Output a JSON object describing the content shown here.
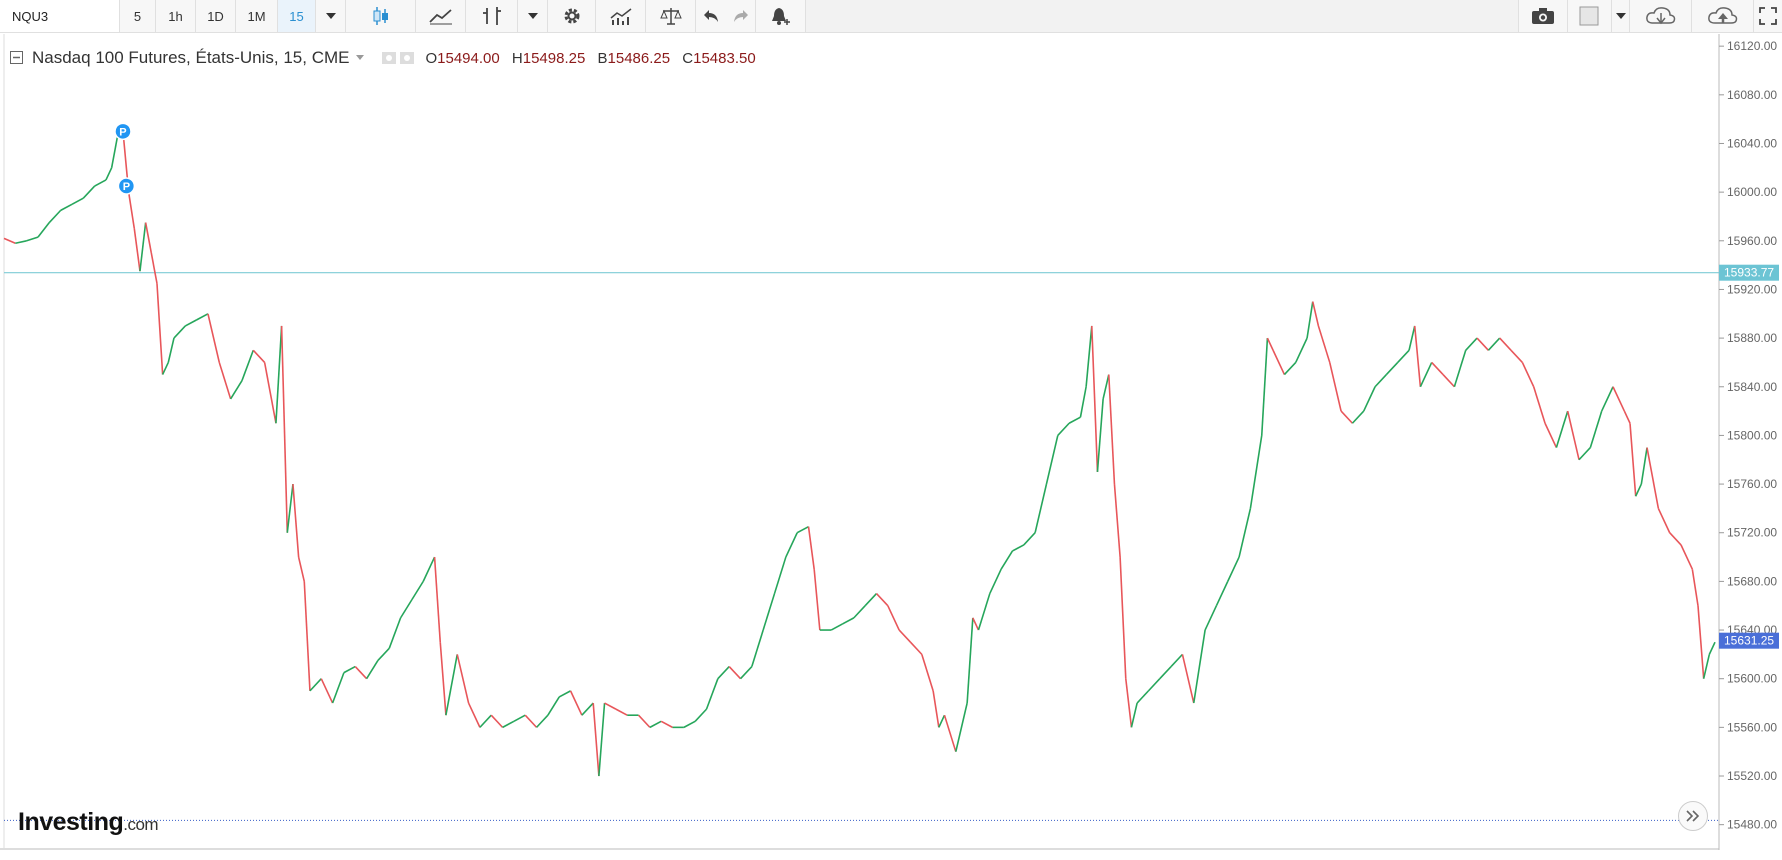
{
  "toolbar": {
    "symbol": "NQU3",
    "intervals": [
      "5",
      "1h",
      "1D",
      "1M",
      "15"
    ],
    "active_interval": "15"
  },
  "legend": {
    "title": "Nasdaq 100 Futures, États-Unis, 15, CME",
    "open_label": "O",
    "open": "15494.00",
    "high_label": "H",
    "high": "15498.25",
    "low_label": "B",
    "low": "15486.25",
    "close_label": "C",
    "close": "15483.50"
  },
  "logo": {
    "main": "Investing",
    "suffix": ".com"
  },
  "colors": {
    "up": "#26a65b",
    "down": "#e8565a",
    "hline": "#7ecbd6",
    "price_tag": "#4a6fd8",
    "level_tag": "#6cc4d4",
    "dotted_line": "#3a5fc8",
    "marker": "#2196f3"
  },
  "chart_data": {
    "type": "line",
    "title": "Nasdaq 100 Futures, États-Unis, 15, CME",
    "interval": "15",
    "ylim": [
      15460,
      16130
    ],
    "y_ticks": [
      "16120.00",
      "16080.00",
      "16040.00",
      "16000.00",
      "15960.00",
      "15920.00",
      "15880.00",
      "15840.00",
      "15800.00",
      "15760.00",
      "15720.00",
      "15680.00",
      "15640.00",
      "15600.00",
      "15560.00",
      "15520.00",
      "15480.00"
    ],
    "series": [
      {
        "x": [
          0,
          10,
          20,
          30,
          40,
          50,
          60,
          70,
          80,
          90,
          95,
          100,
          105,
          110,
          115,
          120,
          125,
          130,
          135,
          140,
          145,
          150,
          160,
          170,
          180,
          190,
          200,
          210,
          220,
          230,
          240,
          245,
          250,
          255,
          260,
          265,
          270,
          280,
          290,
          300,
          310,
          320,
          330,
          340,
          350,
          360,
          370,
          380,
          385,
          390,
          400,
          410,
          420,
          430,
          440,
          450,
          460,
          470,
          480,
          490,
          500,
          510,
          520,
          525,
          530,
          540,
          550,
          560,
          570,
          580,
          590,
          600,
          610,
          620,
          630,
          640,
          650,
          660,
          670,
          680,
          690,
          700,
          710,
          715,
          720,
          730,
          740,
          750,
          760,
          770,
          780,
          790,
          800,
          810,
          820,
          825,
          830,
          840,
          850,
          855,
          860,
          870,
          880,
          890,
          900,
          910,
          920,
          930,
          940,
          950,
          955,
          960,
          965,
          970,
          975,
          980,
          985,
          990,
          995,
          1000,
          1010,
          1020,
          1030,
          1040,
          1050,
          1060,
          1070,
          1080,
          1090,
          1100,
          1110,
          1115,
          1120,
          1130,
          1140,
          1150,
          1155,
          1160,
          1170,
          1180,
          1190,
          1200,
          1210,
          1220,
          1230,
          1240,
          1245,
          1250,
          1260,
          1270,
          1280,
          1290,
          1300,
          1310,
          1320,
          1330,
          1340,
          1350,
          1360,
          1370,
          1380,
          1390,
          1400,
          1410,
          1420,
          1430,
          1435,
          1440,
          1445,
          1450,
          1460,
          1470,
          1480,
          1490,
          1495,
          1500,
          1505,
          1510
        ],
        "values": [
          15962,
          15958,
          15960,
          15963,
          15975,
          15985,
          15990,
          15995,
          16005,
          16010,
          16020,
          16045,
          16050,
          16000,
          15970,
          15935,
          15975,
          15950,
          15925,
          15850,
          15860,
          15880,
          15890,
          15895,
          15900,
          15860,
          15830,
          15845,
          15870,
          15860,
          15810,
          15890,
          15720,
          15760,
          15700,
          15680,
          15590,
          15600,
          15580,
          15605,
          15610,
          15600,
          15615,
          15625,
          15650,
          15665,
          15680,
          15700,
          15630,
          15570,
          15620,
          15580,
          15560,
          15570,
          15560,
          15565,
          15570,
          15560,
          15570,
          15585,
          15590,
          15570,
          15580,
          15520,
          15580,
          15575,
          15570,
          15570,
          15560,
          15565,
          15560,
          15560,
          15565,
          15575,
          15600,
          15610,
          15600,
          15610,
          15640,
          15670,
          15700,
          15720,
          15725,
          15690,
          15640,
          15640,
          15645,
          15650,
          15660,
          15670,
          15660,
          15640,
          15630,
          15620,
          15590,
          15560,
          15570,
          15540,
          15580,
          15650,
          15640,
          15670,
          15690,
          15705,
          15710,
          15720,
          15760,
          15800,
          15810,
          15815,
          15840,
          15890,
          15770,
          15830,
          15850,
          15760,
          15700,
          15600,
          15560,
          15580,
          15590,
          15600,
          15610,
          15620,
          15580,
          15640,
          15660,
          15680,
          15700,
          15740,
          15800,
          15880,
          15870,
          15850,
          15860,
          15880,
          15910,
          15890,
          15860,
          15820,
          15810,
          15820,
          15840,
          15850,
          15860,
          15870,
          15890,
          15840,
          15860,
          15850,
          15840,
          15870,
          15880,
          15870,
          15880,
          15870,
          15860,
          15840,
          15810,
          15790,
          15820,
          15780,
          15790,
          15820,
          15840,
          15820,
          15810,
          15750,
          15760,
          15790,
          15740,
          15720,
          15710,
          15690,
          15660,
          15600,
          15620,
          15630
        ]
      }
    ],
    "current_price": "15631.25",
    "horizontal_line": "15933.77",
    "dotted_level": 15483.5,
    "markers": [
      {
        "label": "P",
        "x": 105,
        "y": 16050
      },
      {
        "label": "P",
        "x": 108,
        "y": 16005
      }
    ]
  }
}
